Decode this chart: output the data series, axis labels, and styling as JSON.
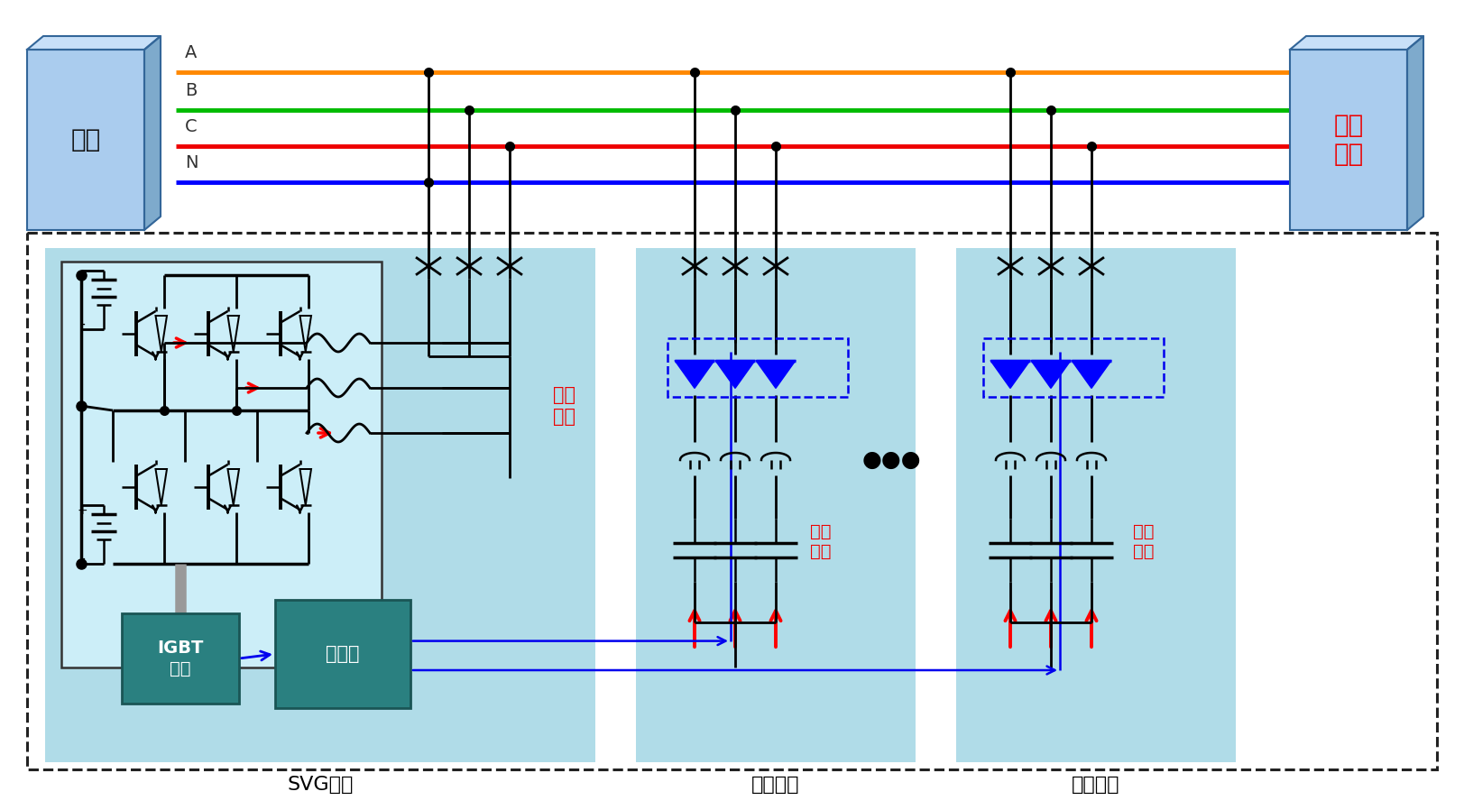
{
  "bg_color": "#ffffff",
  "fig_w": 16.23,
  "fig_h": 8.98,
  "phase_A_color": "#ff8800",
  "phase_B_color": "#00bb00",
  "phase_C_color": "#ee0000",
  "phase_N_color": "#0000ff",
  "phase_lw": 3.5,
  "teal_box_face": "#2a8080",
  "teal_box_edge": "#1a5555",
  "grid_box_face": "#aaccee",
  "grid_box_edge": "#336699",
  "region_bg": "#b0dce8",
  "igbt_circuit_bg": "#cceef8",
  "outer_dash_color": "#222222",
  "red_text": "#ee0000",
  "blue_line": "#0000ee",
  "gray_bus": "#999999",
  "svg_label": "SVG支路",
  "cap1_label": "电容支路",
  "cap2_label": "电容支路",
  "rong_text": "容性\n电流"
}
